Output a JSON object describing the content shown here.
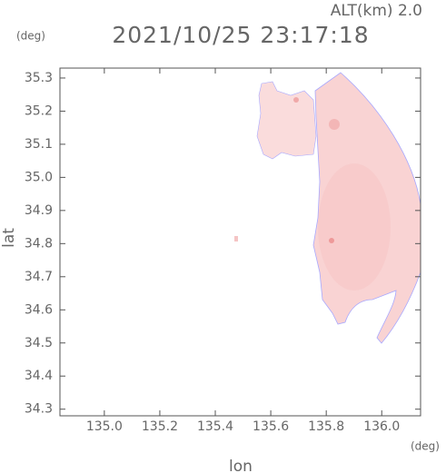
{
  "chart_data": {
    "type": "map",
    "title": "2021/10/25 23:17:18",
    "subtitle": "ALT(km) 2.0",
    "x_label": "lon",
    "y_label": "lat",
    "x_unit": "(deg)",
    "y_unit": "(deg)",
    "xlim": [
      134.84,
      136.14
    ],
    "ylim": [
      34.28,
      35.33
    ],
    "xticks": [
      {
        "value": 135,
        "label": "135.0"
      },
      135.2,
      135.4,
      135.6,
      135.8,
      {
        "value": 136,
        "label": "136.0"
      }
    ],
    "yticks": [
      34.3,
      34.4,
      34.5,
      34.6,
      34.7,
      34.8,
      34.9,
      {
        "value": 35,
        "label": "35.0"
      },
      35.1,
      35.2,
      35.3
    ]
  }
}
